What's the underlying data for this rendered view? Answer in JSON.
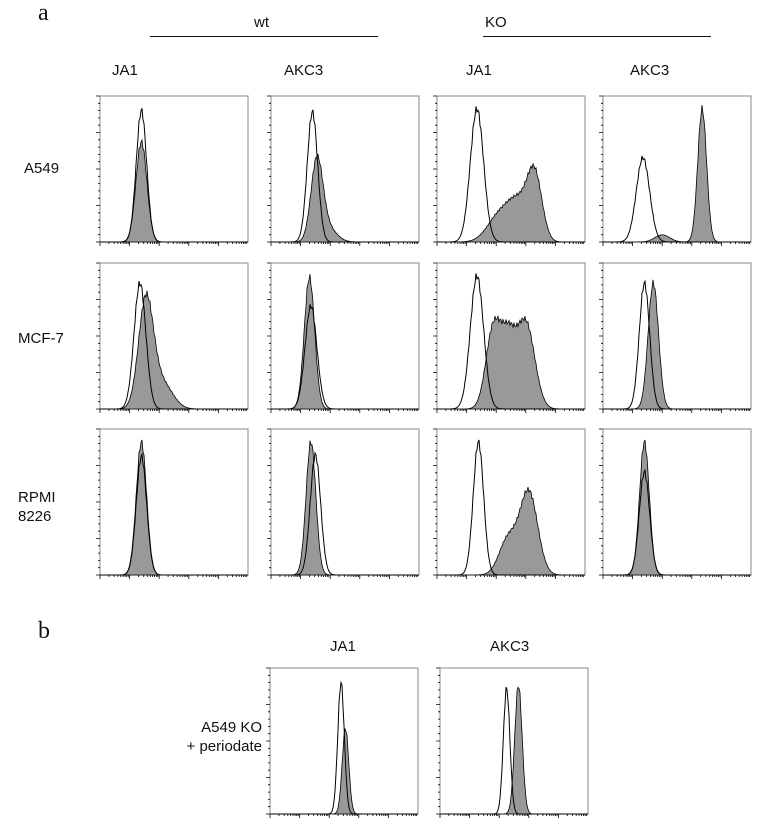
{
  "panel_a": {
    "label": "a",
    "group_headers": [
      "wt",
      "KO"
    ],
    "column_headers": [
      "JA1",
      "AKC3",
      "JA1",
      "AKC3"
    ],
    "row_labels": [
      "A549",
      "MCF-7",
      "RPMI\n8226"
    ]
  },
  "panel_b": {
    "label": "b",
    "column_headers": [
      "JA1",
      "AKC3"
    ],
    "row_label": "A549 KO\n+ periodate"
  },
  "colors": {
    "filled": "#999999",
    "outline": "#000000"
  },
  "chart_data": {
    "type": "area",
    "description_of_encoding": "histograms; each series given as gaussian components [center, sd, relative height] on unlabeled log-fluorescence axis (0-1) and normalized count (0-1)",
    "xlim": [
      0,
      1
    ],
    "ylim": [
      0,
      1
    ],
    "panel_a": [
      [
        {
          "open": [
            [
              0.28,
              0.035,
              0.92
            ]
          ],
          "filled": [
            [
              0.28,
              0.037,
              0.7
            ]
          ]
        },
        {
          "open": [
            [
              0.28,
              0.035,
              0.91
            ]
          ],
          "filled": [
            [
              0.31,
              0.04,
              0.55
            ],
            [
              0.38,
              0.06,
              0.1
            ]
          ]
        },
        {
          "open": [
            [
              0.27,
              0.045,
              0.93
            ]
          ],
          "filled": [
            [
              0.66,
              0.05,
              0.45
            ],
            [
              0.55,
              0.07,
              0.25
            ],
            [
              0.42,
              0.08,
              0.18
            ]
          ]
        },
        {
          "open": [
            [
              0.27,
              0.045,
              0.59
            ]
          ],
          "filled": [
            [
              0.67,
              0.03,
              0.93
            ],
            [
              0.4,
              0.05,
              0.05
            ]
          ]
        }
      ],
      [
        {
          "open": [
            [
              0.27,
              0.04,
              0.88
            ]
          ],
          "filled": [
            [
              0.31,
              0.05,
              0.75
            ],
            [
              0.42,
              0.07,
              0.18
            ]
          ]
        },
        {
          "open": [
            [
              0.27,
              0.04,
              0.72
            ]
          ],
          "filled": [
            [
              0.26,
              0.035,
              0.92
            ]
          ]
        },
        {
          "open": [
            [
              0.27,
              0.045,
              0.93
            ]
          ],
          "filled": [
            [
              0.38,
              0.05,
              0.55
            ],
            [
              0.6,
              0.06,
              0.6
            ],
            [
              0.48,
              0.05,
              0.45
            ]
          ]
        },
        {
          "open": [
            [
              0.28,
              0.035,
              0.88
            ]
          ],
          "filled": [
            [
              0.34,
              0.035,
              0.88
            ]
          ]
        }
      ],
      [
        {
          "open": [
            [
              0.28,
              0.035,
              0.83
            ]
          ],
          "filled": [
            [
              0.28,
              0.035,
              0.93
            ]
          ]
        },
        {
          "open": [
            [
              0.3,
              0.035,
              0.84
            ]
          ],
          "filled": [
            [
              0.27,
              0.033,
              0.93
            ]
          ]
        },
        {
          "open": [
            [
              0.28,
              0.035,
              0.93
            ]
          ],
          "filled": [
            [
              0.62,
              0.06,
              0.58
            ],
            [
              0.48,
              0.06,
              0.25
            ]
          ]
        },
        {
          "open": [
            [
              0.28,
              0.035,
              0.72
            ]
          ],
          "filled": [
            [
              0.28,
              0.033,
              0.93
            ]
          ]
        }
      ]
    ],
    "panel_b": [
      {
        "open": [
          [
            0.48,
            0.022,
            0.92
          ]
        ],
        "filled": [
          [
            0.51,
            0.022,
            0.6
          ]
        ]
      },
      {
        "open": [
          [
            0.45,
            0.022,
            0.88
          ]
        ],
        "filled": [
          [
            0.53,
            0.025,
            0.9
          ]
        ]
      }
    ]
  }
}
